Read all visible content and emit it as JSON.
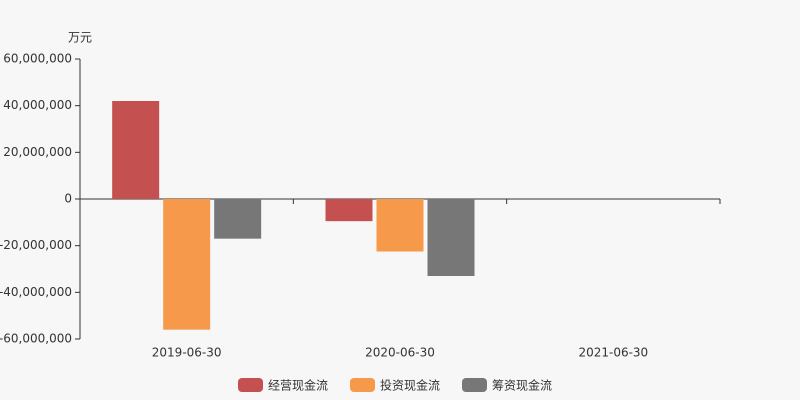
{
  "chart_data": {
    "type": "bar",
    "unit": "万元",
    "categories": [
      "2019-06-30",
      "2020-06-30",
      "2021-06-30"
    ],
    "series": [
      {
        "name": "经营现金流",
        "color": "#c4504f",
        "values": [
          42000000,
          -9500000,
          null
        ]
      },
      {
        "name": "投资现金流",
        "color": "#f7994a",
        "values": [
          -56000000,
          -22500000,
          null
        ]
      },
      {
        "name": "筹资现金流",
        "color": "#777777",
        "values": [
          -17000000,
          -33000000,
          null
        ]
      }
    ],
    "ylim": [
      -60000000,
      60000000
    ],
    "yticks": [
      {
        "value": -60000000,
        "label": "-60,000,000"
      },
      {
        "value": -40000000,
        "label": "-40,000,000"
      },
      {
        "value": -20000000,
        "label": "-20,000,000"
      },
      0,
      {
        "value": 20000000,
        "label": "20,000,000"
      },
      {
        "value": 40000000,
        "label": "40,000,000"
      },
      {
        "value": 60000000,
        "label": "60,000,000"
      }
    ],
    "legend": "bottom"
  }
}
